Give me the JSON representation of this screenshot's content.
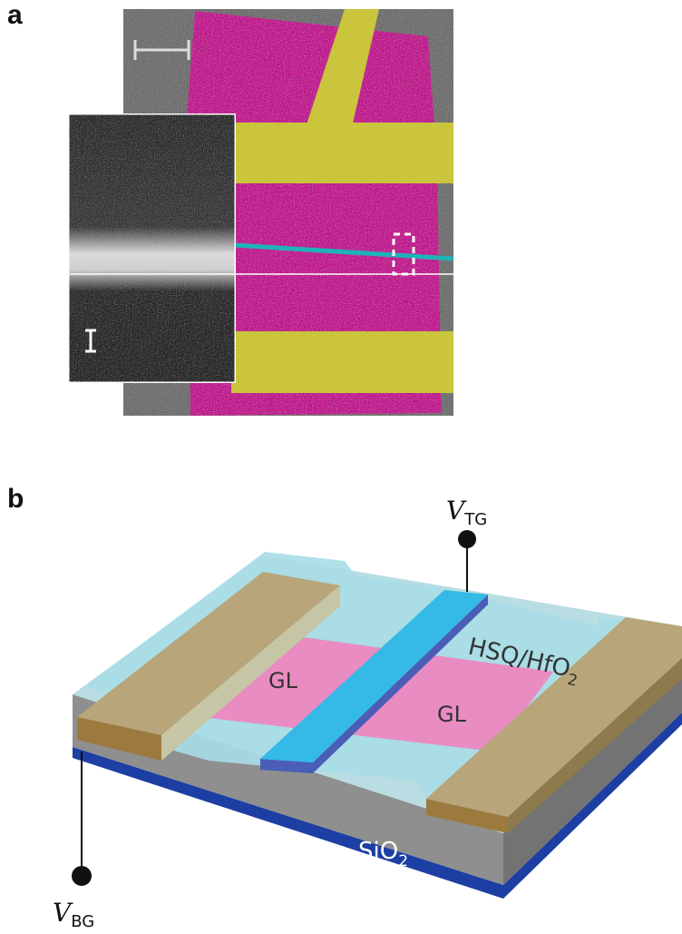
{
  "panel_a": {
    "label": "a"
  },
  "panel_b": {
    "label": "b",
    "gl_left": "GL",
    "gl_right": "GL",
    "dielectric": {
      "main": "HSQ/HfO",
      "sub": "2"
    },
    "oxide": {
      "main": "SiO",
      "sub": "2"
    },
    "top_gate": {
      "main": "V",
      "sub": "TG"
    },
    "back_gate": {
      "main": "V",
      "sub": "BG"
    }
  },
  "colors": {
    "sem_background": "#6e6e6e",
    "graphene_false_color": "#c0178f",
    "contact_false_color": "#c9c23a",
    "gate_false_color": "#1fb3b8",
    "pink_graphene": "#e98cc2",
    "blue_gate": "#35b9e6",
    "gold_contact": "#b8a57a",
    "hsq_layer": "#a8dde6",
    "sio2": "#8f8f8f",
    "silicon_bottom": "#1d3fa3"
  }
}
